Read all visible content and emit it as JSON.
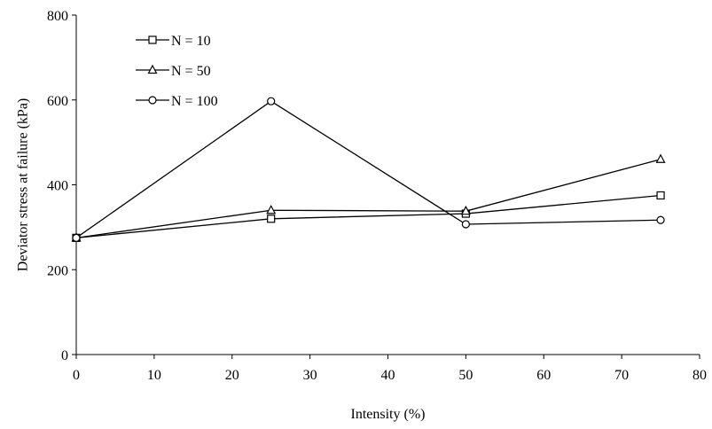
{
  "chart_data": {
    "type": "line",
    "title": "",
    "xlabel": "Intensity (%)",
    "ylabel": "Deviator stress at failure (kPa)",
    "xlim": [
      0,
      80
    ],
    "ylim": [
      0,
      800
    ],
    "xticks": [
      0,
      10,
      20,
      30,
      40,
      50,
      60,
      70,
      80
    ],
    "yticks": [
      0,
      200,
      400,
      600,
      800
    ],
    "grid": false,
    "legend_position": "top-left",
    "x": [
      0,
      25,
      50,
      75
    ],
    "series": [
      {
        "name": "N = 10",
        "marker": "square",
        "values": [
          275,
          320,
          332,
          375
        ]
      },
      {
        "name": "N = 50",
        "marker": "triangle",
        "values": [
          275,
          340,
          338,
          460
        ]
      },
      {
        "name": "N = 100",
        "marker": "circle",
        "values": [
          275,
          597,
          307,
          317
        ]
      }
    ],
    "colors": {
      "line": "#000000",
      "marker_fill": "#ffffff"
    }
  }
}
